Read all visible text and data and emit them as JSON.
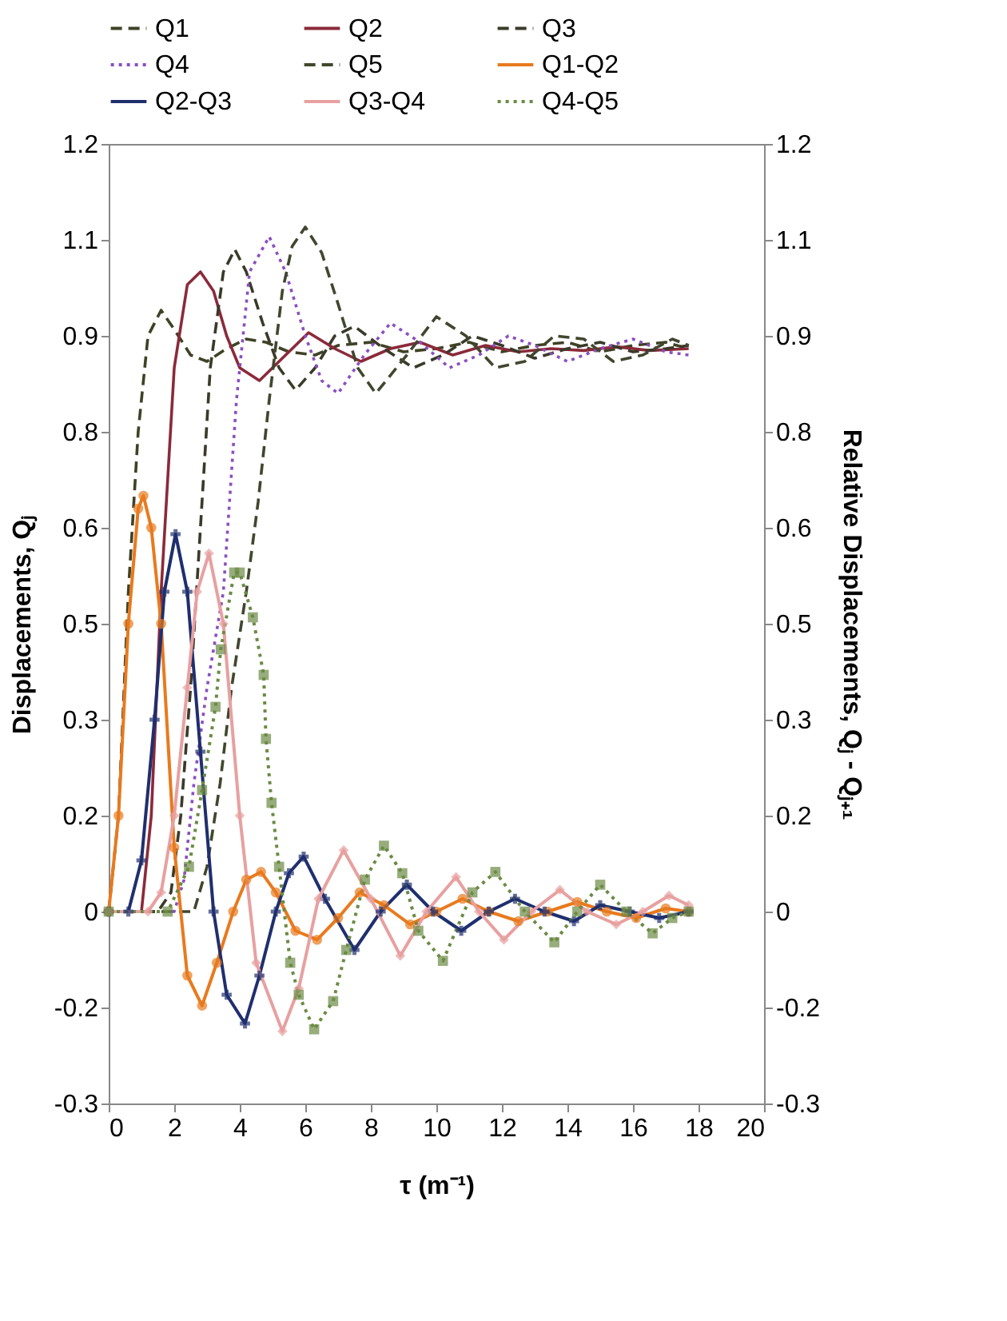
{
  "chart_data": {
    "type": "line",
    "xlabel": "τ (m⁻¹)",
    "ylabel": "Displacements, Qⱼ",
    "y2label": "Relative Displacements, Qⱼ - Qⱼ₊₁",
    "xlim": [
      0,
      20
    ],
    "xticks": [
      0,
      2,
      4,
      6,
      8,
      10,
      12,
      14,
      16,
      18,
      20
    ],
    "ylim": [
      -0.3,
      1.2
    ],
    "yticks": [
      -0.3,
      {
        "value": -0.15,
        "label": "-0.2"
      },
      0.0,
      {
        "value": 0.15,
        "label": "0.2"
      },
      0.3,
      {
        "value": 0.45,
        "label": "0.5"
      },
      0.6,
      {
        "value": 0.75,
        "label": "0.8"
      },
      0.9,
      {
        "value": 1.05,
        "label": "1.1"
      },
      1.2
    ],
    "y2lim": [
      -0.3,
      1.2
    ],
    "y2ticks": [
      -0.3,
      {
        "value": -0.15,
        "label": "-0.2"
      },
      0.0,
      {
        "value": 0.15,
        "label": "0.2"
      },
      0.3,
      {
        "value": 0.45,
        "label": "0.5"
      },
      0.6,
      {
        "value": 0.75,
        "label": "0.8"
      },
      0.9,
      {
        "value": 1.05,
        "label": "1.1"
      },
      1.2
    ],
    "legend": "top",
    "series": [
      {
        "name": "Q1",
        "color": "#3f4226",
        "line_style": "dashed",
        "x": [
          0,
          0.3,
          0.6,
          0.9,
          1.2,
          1.6,
          2.0,
          2.5,
          3.0,
          3.6,
          4.2,
          4.8,
          5.5,
          6.3,
          7.0,
          8,
          9,
          10,
          11,
          12,
          13,
          14,
          15,
          16,
          17,
          17.7
        ],
        "values": [
          0,
          0.15,
          0.5,
          0.75,
          0.9,
          0.94,
          0.91,
          0.87,
          0.86,
          0.88,
          0.895,
          0.89,
          0.875,
          0.87,
          0.885,
          0.89,
          0.875,
          0.88,
          0.89,
          0.875,
          0.885,
          0.89,
          0.875,
          0.885,
          0.89,
          0.88
        ]
      },
      {
        "name": "Q2",
        "color": "#8b2a3a",
        "line_style": "solid",
        "x": [
          0,
          1.0,
          1.3,
          1.6,
          2.0,
          2.4,
          2.8,
          3.2,
          3.6,
          4.0,
          4.6,
          5.2,
          6.1,
          6.9,
          7.7,
          8.6,
          9.5,
          10.5,
          11.5,
          12.5,
          13.5,
          14.5,
          15.5,
          16.5,
          17.7
        ],
        "values": [
          0,
          0.0,
          0.15,
          0.5,
          0.85,
          0.98,
          1.0,
          0.97,
          0.9,
          0.85,
          0.83,
          0.86,
          0.905,
          0.88,
          0.86,
          0.88,
          0.89,
          0.87,
          0.885,
          0.875,
          0.88,
          0.877,
          0.883,
          0.877,
          0.88
        ]
      },
      {
        "name": "Q3",
        "color": "#3a3a2a",
        "line_style": "dashed",
        "x": [
          0,
          1.5,
          1.9,
          2.2,
          2.5,
          2.8,
          3.1,
          3.5,
          3.85,
          4.2,
          4.7,
          5.2,
          5.7,
          6.3,
          6.9,
          7.5,
          8.4,
          9.3,
          10.2,
          11.1,
          12,
          13,
          14,
          15,
          16,
          17,
          17.7
        ],
        "values": [
          0,
          0,
          0.03,
          0.15,
          0.35,
          0.6,
          0.85,
          1.0,
          1.035,
          1.0,
          0.92,
          0.85,
          0.815,
          0.85,
          0.9,
          0.915,
          0.88,
          0.85,
          0.87,
          0.9,
          0.885,
          0.865,
          0.88,
          0.89,
          0.875,
          0.88,
          0.885
        ]
      },
      {
        "name": "Q4",
        "color": "#8a4fc0",
        "line_style": "dotted",
        "x": [
          0,
          2.0,
          2.3,
          2.6,
          3.0,
          3.5,
          3.9,
          4.3,
          4.9,
          5.4,
          6.0,
          6.5,
          7.0,
          7.8,
          8.6,
          9.5,
          10.4,
          11.3,
          12.2,
          13,
          14,
          15,
          16,
          17,
          17.7
        ],
        "values": [
          0,
          0,
          0.05,
          0.2,
          0.35,
          0.5,
          0.8,
          1.0,
          1.055,
          1.0,
          0.9,
          0.83,
          0.81,
          0.87,
          0.92,
          0.89,
          0.85,
          0.87,
          0.9,
          0.885,
          0.86,
          0.88,
          0.895,
          0.875,
          0.87
        ]
      },
      {
        "name": "Q5",
        "color": "#40472e",
        "line_style": "dashed",
        "x": [
          0,
          2.6,
          3.0,
          3.4,
          3.75,
          4.2,
          4.56,
          4.9,
          5.3,
          5.6,
          6.0,
          6.5,
          7.0,
          7.6,
          8.15,
          9.1,
          10.0,
          10.9,
          11.8,
          12.7,
          13.6,
          14.5,
          15.4,
          16.3,
          17.2,
          17.7
        ],
        "values": [
          0,
          0,
          0.07,
          0.2,
          0.35,
          0.5,
          0.64,
          0.8,
          0.97,
          1.04,
          1.07,
          1.03,
          0.95,
          0.85,
          0.81,
          0.87,
          0.93,
          0.9,
          0.85,
          0.86,
          0.9,
          0.895,
          0.86,
          0.87,
          0.895,
          0.885
        ]
      },
      {
        "name": "Q1-Q2",
        "color": "#e87a1e",
        "line_style": "solid",
        "marker": "circle",
        "axis": "y2",
        "x": [
          0,
          0.3,
          0.6,
          0.9,
          1.06,
          1.3,
          1.6,
          2.0,
          2.4,
          2.85,
          3.3,
          3.8,
          4.2,
          4.65,
          5.1,
          5.7,
          6.36,
          7.0,
          7.66,
          8.4,
          9.2,
          10,
          10.8,
          11.6,
          12.5,
          13.4,
          14.3,
          15.2,
          16.1,
          17,
          17.7
        ],
        "values": [
          0,
          0.15,
          0.45,
          0.63,
          0.65,
          0.6,
          0.45,
          0.1,
          -0.1,
          -0.147,
          -0.08,
          0.0,
          0.05,
          0.062,
          0.03,
          -0.03,
          -0.044,
          -0.01,
          0.03,
          0.01,
          -0.02,
          0.0,
          0.02,
          0.0,
          -0.015,
          0.0,
          0.015,
          0.0,
          -0.01,
          0.005,
          0.0
        ]
      },
      {
        "name": "Q2-Q3",
        "color": "#1f2f6e",
        "line_style": "solid",
        "marker": "cross",
        "axis": "y2",
        "x": [
          0,
          0.6,
          1.0,
          1.4,
          1.7,
          2.04,
          2.4,
          2.8,
          3.2,
          3.6,
          4.16,
          4.6,
          5.1,
          5.5,
          5.95,
          6.6,
          7.5,
          8.3,
          9.1,
          9.9,
          10.76,
          11.6,
          12.4,
          13.3,
          14.2,
          15,
          15.9,
          16.8,
          17.7
        ],
        "values": [
          0,
          0,
          0.08,
          0.3,
          0.5,
          0.59,
          0.5,
          0.25,
          0.0,
          -0.13,
          -0.175,
          -0.1,
          0.0,
          0.06,
          0.086,
          0.02,
          -0.06,
          0.0,
          0.042,
          0.0,
          -0.03,
          0.0,
          0.02,
          0.0,
          -0.015,
          0.01,
          0.0,
          -0.01,
          0.0
        ]
      },
      {
        "name": "Q3-Q4",
        "color": "#e8a0a0",
        "line_style": "solid",
        "marker": "diamond",
        "axis": "y2",
        "x": [
          0,
          1.2,
          1.6,
          2.0,
          2.4,
          2.7,
          3.06,
          3.5,
          4.0,
          4.5,
          5.3,
          5.8,
          6.4,
          7.17,
          8.0,
          8.9,
          9.7,
          10.6,
          11.3,
          12.06,
          12.9,
          13.77,
          14.6,
          15.49,
          16.3,
          17.1,
          17.7
        ],
        "values": [
          0,
          0,
          0.03,
          0.15,
          0.35,
          0.5,
          0.56,
          0.45,
          0.15,
          -0.08,
          -0.187,
          -0.12,
          0.02,
          0.096,
          0.02,
          -0.069,
          0.0,
          0.054,
          0.0,
          -0.044,
          0.0,
          0.034,
          0.0,
          -0.02,
          0.0,
          0.025,
          0.01
        ]
      },
      {
        "name": "Q4-Q5",
        "color": "#6b8a45",
        "line_style": "dotted",
        "marker": "square",
        "axis": "y2",
        "x": [
          0,
          1.8,
          2.45,
          2.85,
          3.26,
          3.42,
          3.83,
          4.0,
          4.4,
          4.73,
          4.8,
          4.97,
          5.2,
          5.54,
          5.8,
          6.27,
          6.85,
          7.25,
          7.82,
          8.4,
          8.96,
          9.45,
          10.2,
          11.1,
          11.8,
          12.7,
          13.6,
          14.3,
          15.0,
          15.8,
          16.6,
          17.2,
          17.7
        ],
        "values": [
          0,
          0,
          0.07,
          0.19,
          0.32,
          0.41,
          0.53,
          0.53,
          0.46,
          0.37,
          0.27,
          0.17,
          0.07,
          -0.08,
          -0.13,
          -0.184,
          -0.14,
          -0.06,
          0.05,
          0.103,
          0.06,
          -0.03,
          -0.077,
          0.03,
          0.062,
          0.0,
          -0.048,
          0.0,
          0.042,
          0.0,
          -0.034,
          -0.01,
          0.0
        ]
      }
    ]
  }
}
